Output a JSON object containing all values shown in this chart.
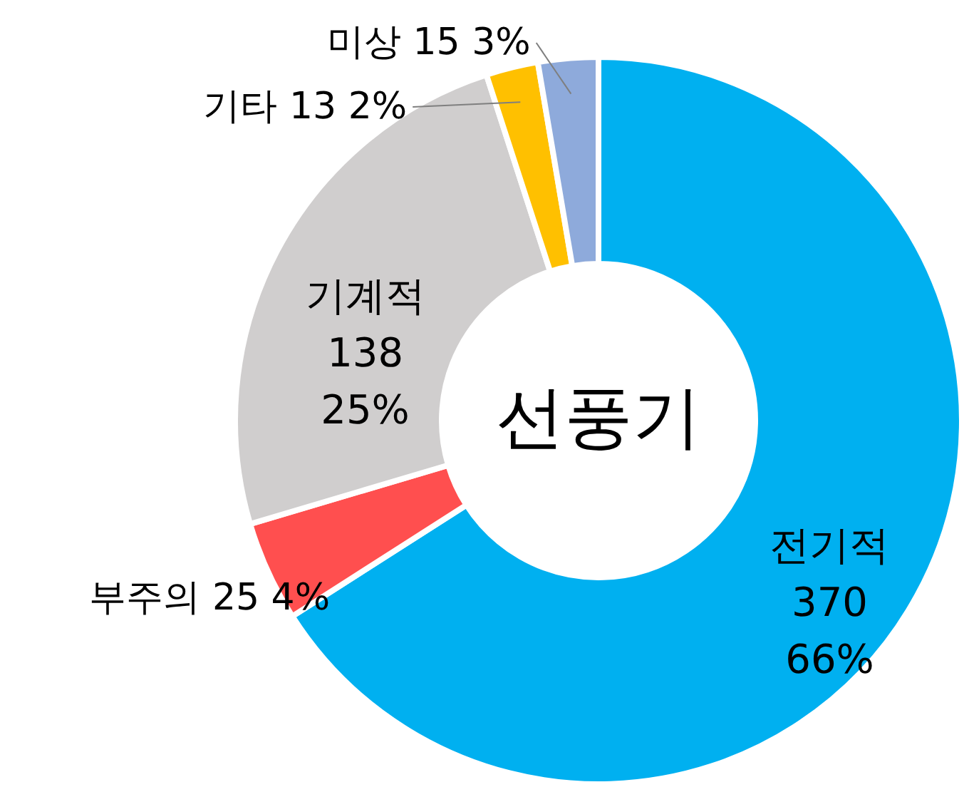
{
  "chart_data": {
    "type": "donut",
    "title": "선풍기",
    "categories": [
      "전기적",
      "부주의",
      "기계적",
      "기타",
      "미상"
    ],
    "values": [
      370,
      25,
      138,
      13,
      15
    ],
    "colors": [
      "#00b0f0",
      "#ff4f4f",
      "#d0cece",
      "#ffc000",
      "#8eaadb"
    ],
    "value_labels": [
      "370 66%",
      "25 4%",
      "138 25%",
      "13 2%",
      "15 3%"
    ]
  }
}
